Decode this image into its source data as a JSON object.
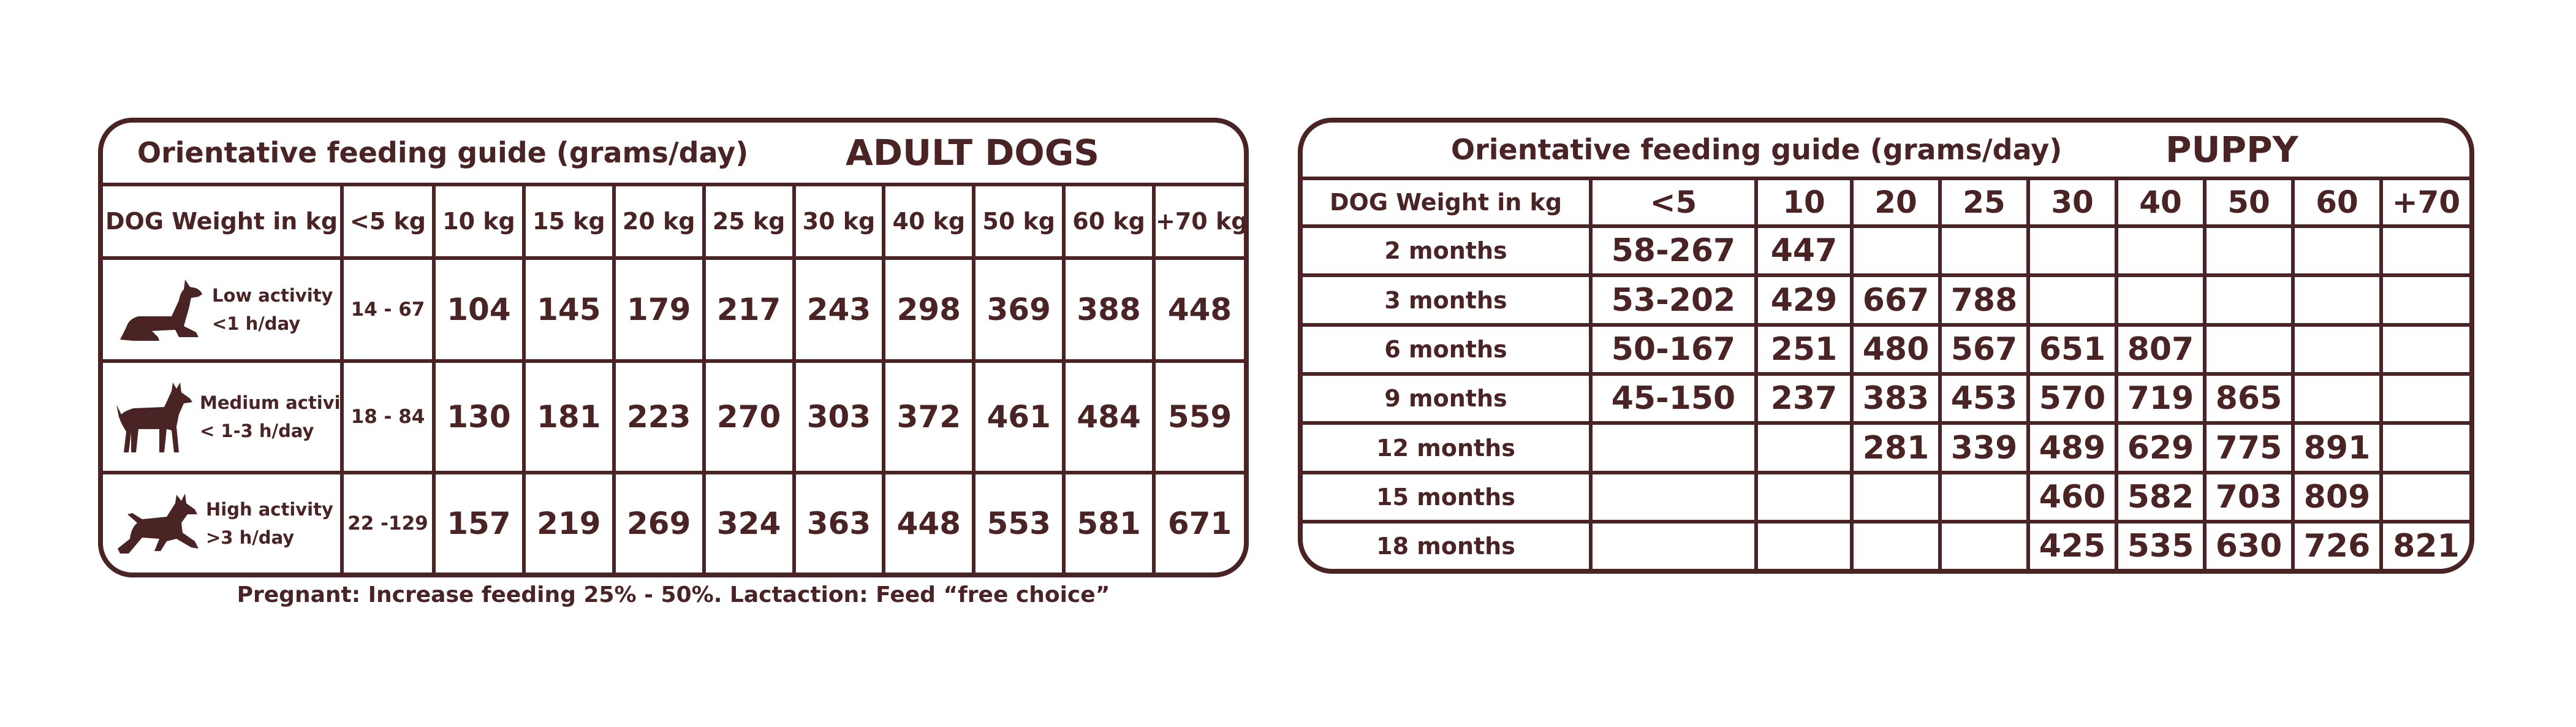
{
  "adult": {
    "title": "Orientative feeding guide (grams/day)",
    "category": "ADULT DOGS",
    "weight_label": "DOG Weight in kg",
    "columns": [
      "<5 kg",
      "10 kg",
      "15 kg",
      "20 kg",
      "25 kg",
      "30 kg",
      "40 kg",
      "50 kg",
      "60 kg",
      "+70 kg"
    ],
    "rows": [
      {
        "activity": "Low activity",
        "hours": "<1 h/day",
        "icon": "lying-dog-icon",
        "values": [
          "14 - 67",
          "104",
          "145",
          "179",
          "217",
          "243",
          "298",
          "369",
          "388",
          "448"
        ]
      },
      {
        "activity": "Medium activity",
        "hours": "< 1-3 h/day",
        "icon": "standing-dog-icon",
        "values": [
          "18 - 84",
          "130",
          "181",
          "223",
          "270",
          "303",
          "372",
          "461",
          "484",
          "559"
        ]
      },
      {
        "activity": "High activity",
        "hours": ">3 h/day",
        "icon": "running-dog-icon",
        "values": [
          "22 -129",
          "157",
          "219",
          "269",
          "324",
          "363",
          "448",
          "553",
          "581",
          "671"
        ]
      }
    ],
    "note": "Pregnant: Increase feeding 25% - 50%. Lactaction: Feed “free choice”"
  },
  "puppy": {
    "title": "Orientative feeding guide (grams/day)",
    "category": "PUPPY",
    "weight_label": "DOG Weight in kg",
    "columns": [
      "<5",
      "10",
      "20",
      "25",
      "30",
      "40",
      "50",
      "60",
      "+70"
    ],
    "rows": [
      {
        "age": "2 months",
        "values": [
          "58-267",
          "447",
          "",
          "",
          "",
          "",
          "",
          "",
          ""
        ]
      },
      {
        "age": "3 months",
        "values": [
          "53-202",
          "429",
          "667",
          "788",
          "",
          "",
          "",
          "",
          ""
        ]
      },
      {
        "age": "6 months",
        "values": [
          "50-167",
          "251",
          "480",
          "567",
          "651",
          "807",
          "",
          "",
          ""
        ]
      },
      {
        "age": "9 months",
        "values": [
          "45-150",
          "237",
          "383",
          "453",
          "570",
          "719",
          "865",
          "",
          ""
        ]
      },
      {
        "age": "12 months",
        "values": [
          "",
          "",
          "281",
          "339",
          "489",
          "629",
          "775",
          "891",
          ""
        ]
      },
      {
        "age": "15 months",
        "values": [
          "",
          "",
          "",
          "",
          "460",
          "582",
          "703",
          "809",
          ""
        ]
      },
      {
        "age": "18 months",
        "values": [
          "",
          "",
          "",
          "",
          "425",
          "535",
          "630",
          "726",
          "821"
        ]
      }
    ]
  },
  "colors": {
    "primary": "#4a2424",
    "background": "#ffffff"
  }
}
